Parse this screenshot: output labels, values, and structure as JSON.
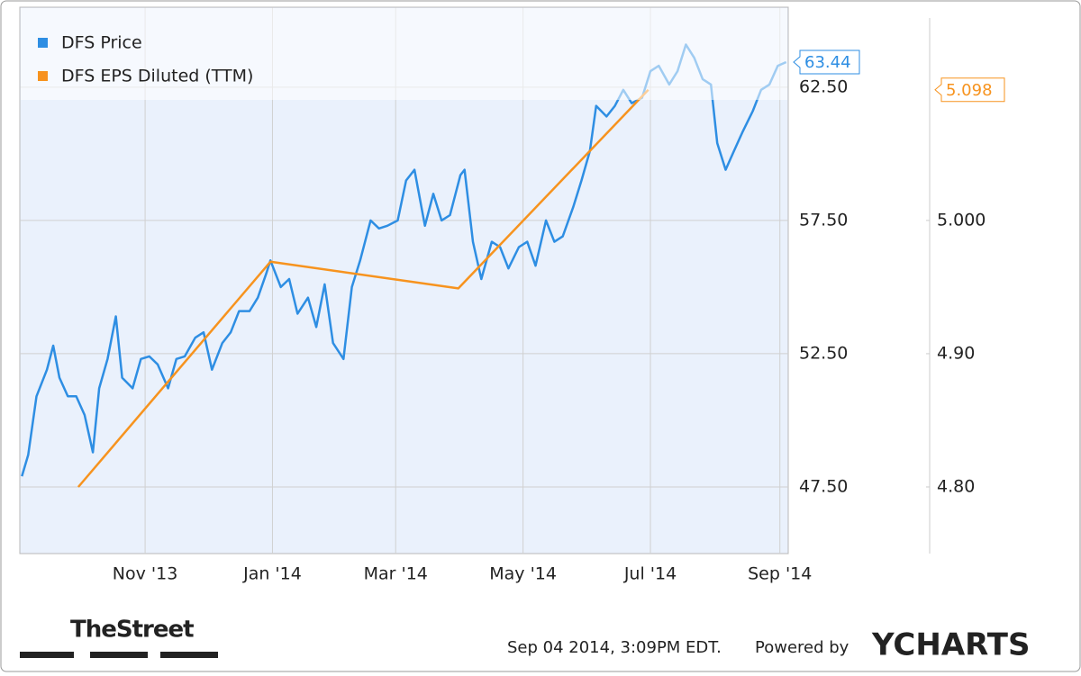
{
  "chart_data": {
    "type": "line",
    "xlim": [
      "2013-09-02",
      "2014-09-05"
    ],
    "xticks": [
      {
        "value": "2013-11-01",
        "label": "Nov '13"
      },
      {
        "value": "2014-01-01",
        "label": "Jan '14"
      },
      {
        "value": "2014-03-01",
        "label": "Mar '14"
      },
      {
        "value": "2014-05-01",
        "label": "May '14"
      },
      {
        "value": "2014-07-01",
        "label": "Jul '14"
      },
      {
        "value": "2014-09-01",
        "label": "Sep '14"
      }
    ],
    "ylim": [
      45,
      65.5
    ],
    "yticks": [
      {
        "value": 47.5,
        "label": "47.50"
      },
      {
        "value": 52.5,
        "label": "52.50"
      },
      {
        "value": 57.5,
        "label": "57.50"
      },
      {
        "value": 62.5,
        "label": "62.50"
      }
    ],
    "y2lim": [
      4.75,
      5.16
    ],
    "y2ticks": [
      {
        "value": 4.8,
        "label": "4.80"
      },
      {
        "value": 4.9,
        "label": "4.90"
      },
      {
        "value": 5.0,
        "label": "5.000"
      }
    ],
    "grid": true,
    "legend": "top-left",
    "series": [
      {
        "name": "DFS Price",
        "color": "#2e8ee3",
        "x": [
          "2013-09-03",
          "2013-09-06",
          "2013-09-10",
          "2013-09-15",
          "2013-09-18",
          "2013-09-21",
          "2013-09-25",
          "2013-09-29",
          "2013-10-03",
          "2013-10-07",
          "2013-10-10",
          "2013-10-14",
          "2013-10-18",
          "2013-10-21",
          "2013-10-26",
          "2013-10-30",
          "2013-11-03",
          "2013-11-07",
          "2013-11-12",
          "2013-11-16",
          "2013-11-20",
          "2013-11-25",
          "2013-11-29",
          "2013-12-03",
          "2013-12-08",
          "2013-12-12",
          "2013-12-16",
          "2013-12-21",
          "2013-12-25",
          "2013-12-29",
          "2013-12-31",
          "2014-01-05",
          "2014-01-09",
          "2014-01-13",
          "2014-01-18",
          "2014-01-22",
          "2014-01-26",
          "2014-01-30",
          "2014-02-04",
          "2014-02-08",
          "2014-02-12",
          "2014-02-17",
          "2014-02-21",
          "2014-02-25",
          "2014-03-02",
          "2014-03-06",
          "2014-03-10",
          "2014-03-15",
          "2014-03-19",
          "2014-03-23",
          "2014-03-27",
          "2014-04-01",
          "2014-04-03",
          "2014-04-07",
          "2014-04-11",
          "2014-04-16",
          "2014-04-20",
          "2014-04-24",
          "2014-04-29",
          "2014-05-03",
          "2014-05-07",
          "2014-05-12",
          "2014-05-16",
          "2014-05-20",
          "2014-05-25",
          "2014-05-29",
          "2014-06-02",
          "2014-06-05",
          "2014-06-10",
          "2014-06-14",
          "2014-06-18",
          "2014-06-22",
          "2014-06-27",
          "2014-07-01",
          "2014-07-05",
          "2014-07-10",
          "2014-07-14",
          "2014-07-18",
          "2014-07-22",
          "2014-07-26",
          "2014-07-30",
          "2014-08-02",
          "2014-08-06",
          "2014-08-10",
          "2014-08-14",
          "2014-08-19",
          "2014-08-23",
          "2014-08-27",
          "2014-08-31",
          "2014-09-04"
        ],
        "values": [
          47.9,
          48.7,
          50.9,
          51.9,
          52.8,
          51.6,
          50.9,
          50.9,
          50.2,
          48.8,
          51.2,
          52.3,
          53.9,
          51.6,
          51.2,
          52.3,
          52.4,
          52.1,
          51.2,
          52.3,
          52.4,
          53.1,
          53.3,
          51.9,
          52.9,
          53.3,
          54.1,
          54.1,
          54.6,
          55.5,
          56.0,
          55.0,
          55.3,
          54.0,
          54.6,
          53.5,
          55.1,
          52.9,
          52.3,
          55.0,
          56.0,
          57.5,
          57.2,
          57.3,
          57.5,
          59.0,
          59.4,
          57.3,
          58.5,
          57.5,
          57.7,
          59.2,
          59.4,
          56.7,
          55.3,
          56.7,
          56.5,
          55.7,
          56.5,
          56.7,
          55.8,
          57.5,
          56.7,
          56.9,
          58.0,
          59.0,
          60.1,
          61.8,
          61.4,
          61.8,
          62.4,
          61.9,
          62.1,
          63.1,
          63.3,
          62.6,
          63.1,
          64.1,
          63.6,
          62.8,
          62.6,
          60.4,
          59.4,
          60.1,
          60.8,
          61.6,
          62.4,
          62.6,
          63.3,
          63.44
        ]
      },
      {
        "name": "DFS EPS Diluted (TTM)",
        "color": "#f7931e",
        "axis": "y2",
        "x": [
          "2013-09-30",
          "2013-12-31",
          "2014-03-31",
          "2014-06-30"
        ],
        "values": [
          4.8,
          4.969,
          4.949,
          5.098
        ]
      }
    ]
  },
  "footer": {
    "brand": "TheStreet",
    "timestamp": "Sep 04 2014, 3:09PM EDT.",
    "powered_by": "Powered by",
    "logo": "YCHARTS"
  }
}
